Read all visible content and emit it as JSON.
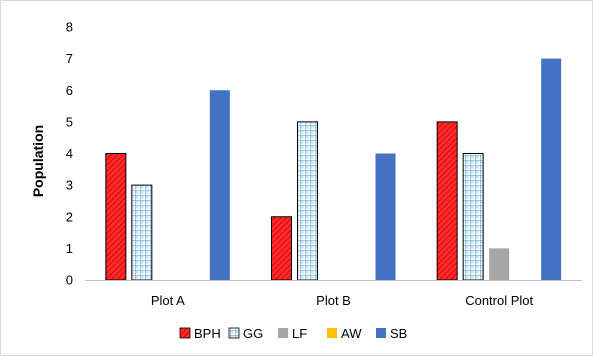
{
  "chart_data": {
    "type": "bar",
    "categories": [
      "Plot A",
      "Plot B",
      "Control Plot"
    ],
    "series": [
      {
        "name": "BPH",
        "values": [
          4,
          2,
          5
        ],
        "color": "#ff3333",
        "pattern": "red-hatch"
      },
      {
        "name": "GG",
        "values": [
          3,
          5,
          4
        ],
        "color": "#1f77c8",
        "pattern": "blue-grid"
      },
      {
        "name": "LF",
        "values": [
          0,
          0,
          1
        ],
        "color": "#a6a6a6",
        "pattern": "solid"
      },
      {
        "name": "AW",
        "values": [
          0,
          0,
          0
        ],
        "color": "#ffc000",
        "pattern": "solid"
      },
      {
        "name": "SB",
        "values": [
          6,
          4,
          7
        ],
        "color": "#4472c4",
        "pattern": "solid"
      }
    ],
    "ylabel": "Population",
    "xlabel": "",
    "ylim": [
      0,
      8
    ],
    "yticks": [
      "0",
      "1",
      "2",
      "3",
      "4",
      "5",
      "6",
      "7",
      "8"
    ],
    "grid": false,
    "legend_position": "bottom"
  }
}
